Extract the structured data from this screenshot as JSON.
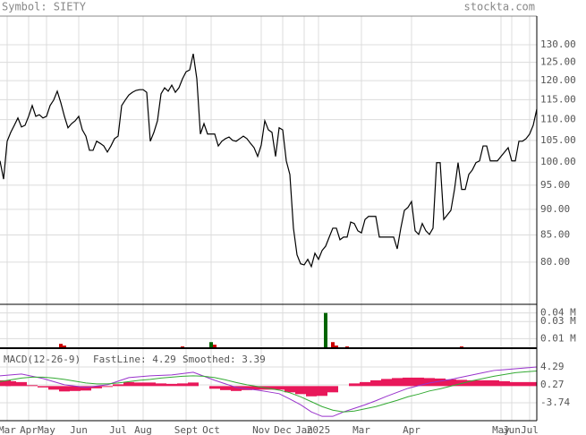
{
  "header": {
    "symbol": "Symbol: SIETY",
    "site": "stockta.com"
  },
  "chart_data": [
    {
      "type": "line",
      "categories": [
        null,
        null,
        "Mar",
        null,
        null,
        null,
        null,
        null,
        "Apr",
        null,
        null,
        null,
        null,
        "May",
        null,
        null,
        null,
        null,
        null,
        null,
        null,
        null,
        "Jun",
        null,
        null,
        null,
        null,
        null,
        null,
        null,
        null,
        null,
        null,
        "Jul",
        null,
        null,
        null,
        null,
        null,
        null,
        "Aug",
        null,
        null,
        null,
        null,
        null,
        null,
        null,
        null,
        null,
        null,
        null,
        "Sept",
        null,
        null,
        null,
        null,
        null,
        null,
        "Oct",
        null,
        null,
        null,
        null,
        null,
        null,
        null,
        null,
        null,
        null,
        null,
        null,
        null,
        "Nov",
        null,
        null,
        null,
        null,
        null,
        "Dec",
        null,
        null,
        null,
        null,
        null,
        "Jan",
        null,
        null,
        null,
        "2025",
        null,
        null,
        null,
        null,
        null,
        null,
        null,
        null,
        null,
        null,
        null,
        "Mar",
        null,
        null,
        null,
        null,
        null,
        null,
        null,
        null,
        null,
        null,
        null,
        null,
        null,
        "Apr",
        null,
        null,
        null,
        null,
        null,
        null,
        null,
        null,
        null,
        null,
        null,
        null,
        null,
        null,
        null,
        null,
        null,
        null,
        null,
        null,
        null,
        null,
        null,
        null,
        "May",
        null,
        null,
        "Jun",
        null,
        null,
        null,
        null,
        "Jul",
        null,
        null
      ],
      "series": [
        {
          "color": "#000000",
          "values": [
            100.3,
            96.3,
            104.8,
            106.9,
            108.6,
            110.4,
            108.2,
            108.6,
            110.8,
            113.5,
            110.8,
            111.2,
            110.4,
            110.8,
            113.5,
            114.9,
            117.2,
            114.2,
            110.8,
            108.0,
            109.0,
            109.7,
            110.8,
            107.5,
            106.0,
            102.7,
            102.7,
            104.8,
            104.3,
            103.7,
            102.3,
            103.7,
            105.4,
            106.0,
            113.5,
            114.9,
            116.2,
            116.9,
            117.4,
            117.6,
            117.6,
            116.9,
            104.8,
            106.9,
            109.7,
            116.5,
            118.1,
            117.2,
            118.8,
            116.9,
            118.1,
            120.5,
            122.4,
            122.9,
            127.4,
            120.5,
            106.5,
            109.0,
            106.5,
            106.5,
            106.5,
            103.7,
            104.8,
            105.4,
            105.8,
            105.0,
            104.8,
            105.4,
            106.0,
            105.4,
            104.3,
            103.3,
            101.3,
            103.9,
            109.7,
            107.5,
            106.9,
            101.3,
            108.0,
            107.5,
            100.3,
            97.3,
            86.3,
            81.3,
            79.7,
            79.5,
            80.5,
            79.2,
            81.6,
            80.5,
            82.1,
            82.9,
            84.6,
            86.3,
            86.3,
            84.1,
            84.6,
            84.6,
            87.5,
            87.2,
            85.8,
            85.4,
            88.0,
            88.6,
            88.6,
            88.6,
            84.6,
            84.6,
            84.6,
            84.6,
            84.6,
            82.4,
            86.3,
            89.8,
            90.4,
            91.6,
            85.8,
            85.1,
            87.2,
            85.8,
            85.1,
            86.3,
            99.9,
            99.9,
            88.0,
            88.9,
            89.8,
            94.1,
            99.9,
            94.1,
            94.1,
            97.3,
            98.3,
            99.9,
            100.3,
            103.7,
            103.7,
            100.3,
            100.3,
            100.3,
            101.3,
            102.3,
            103.3,
            100.3,
            100.3,
            104.8,
            104.8,
            105.4,
            106.5,
            108.6,
            112.6
          ]
        }
      ],
      "ylim": [
        72.8,
        138.6
      ],
      "yticks": [
        {
          "value": 130,
          "label": "130.00"
        },
        {
          "value": 125,
          "label": "125.00"
        },
        {
          "value": 120,
          "label": "120.00"
        },
        {
          "value": 115,
          "label": "115.00"
        },
        {
          "value": 110,
          "label": "110.00"
        },
        {
          "value": 105,
          "label": "105.00"
        },
        {
          "value": 100,
          "label": "100.00"
        },
        {
          "value": 95,
          "label": "95.00"
        },
        {
          "value": 90,
          "label": "90.00"
        },
        {
          "value": 85,
          "label": "85.00"
        },
        {
          "value": 80,
          "label": "80.00"
        }
      ],
      "log_scale": true,
      "grid": true
    },
    {
      "type": "bar",
      "series": [
        {
          "color": "#006400",
          "values": [
            null,
            null,
            null,
            null,
            null,
            null,
            null,
            null,
            null,
            null,
            null,
            null,
            null,
            null,
            null,
            null,
            null,
            null,
            null,
            null,
            null,
            null,
            null,
            null,
            null,
            null,
            null,
            null,
            null,
            null,
            null,
            null,
            null,
            null,
            null,
            null,
            null,
            null,
            null,
            null,
            null,
            null,
            null,
            null,
            null,
            null,
            null,
            null,
            null,
            null,
            null,
            null,
            null,
            null,
            null,
            null,
            null,
            null,
            null,
            0.006,
            null,
            null,
            null,
            null,
            null,
            null,
            null,
            null,
            null,
            null,
            null,
            null,
            null,
            null,
            null,
            null,
            null,
            null,
            null,
            null,
            null,
            null,
            null,
            null,
            null,
            null,
            null,
            null,
            null,
            null,
            null,
            0.04,
            null,
            null,
            null,
            null,
            null,
            null,
            null,
            null,
            null,
            null,
            null,
            null,
            null,
            null,
            null,
            null,
            null,
            null,
            null,
            null,
            null,
            null,
            null,
            null,
            null,
            null,
            null,
            null,
            null,
            null,
            null,
            null,
            null,
            null,
            null,
            null,
            null,
            null,
            null,
            null,
            null,
            null,
            null,
            null,
            null,
            null,
            null,
            null,
            null,
            null,
            null,
            null,
            null,
            null,
            null,
            null,
            null,
            null,
            null
          ]
        },
        {
          "color": "#cc0000",
          "values": [
            null,
            null,
            null,
            null,
            null,
            null,
            null,
            null,
            null,
            null,
            null,
            null,
            null,
            null,
            null,
            null,
            null,
            0.004,
            0.002,
            null,
            null,
            null,
            null,
            null,
            null,
            null,
            null,
            null,
            null,
            null,
            null,
            null,
            null,
            null,
            null,
            null,
            null,
            null,
            null,
            null,
            null,
            null,
            null,
            null,
            null,
            null,
            null,
            null,
            null,
            null,
            null,
            0.001,
            null,
            null,
            null,
            null,
            null,
            null,
            null,
            null,
            0.003,
            null,
            null,
            null,
            null,
            null,
            null,
            null,
            null,
            null,
            null,
            null,
            null,
            null,
            null,
            null,
            null,
            null,
            null,
            null,
            null,
            null,
            null,
            null,
            null,
            null,
            null,
            null,
            null,
            null,
            null,
            null,
            null,
            0.006,
            0.002,
            null,
            null,
            0.001,
            null,
            null,
            null,
            null,
            null,
            null,
            null,
            null,
            null,
            null,
            null,
            null,
            null,
            null,
            null,
            null,
            null,
            null,
            null,
            null,
            null,
            null,
            null,
            null,
            null,
            null,
            null,
            null,
            null,
            null,
            null,
            0.001,
            null,
            null,
            null,
            null,
            null,
            null,
            null,
            null,
            null,
            null,
            null,
            null,
            null,
            null,
            null,
            null,
            null,
            null,
            null,
            null,
            null
          ]
        }
      ],
      "ylim": [
        0,
        0.05
      ],
      "yticks": [
        {
          "value": 0.04,
          "label": "0.04 M"
        },
        {
          "value": 0.03,
          "label": "0.03 M"
        },
        {
          "value": 0.01,
          "label": "0.01 M"
        }
      ]
    },
    {
      "type": "macd",
      "title": "MACD(12-26-9)",
      "histogram": {
        "color": "#e8185a",
        "values": [
          1.3,
          1.1,
          0.9,
          0.2,
          -0.3,
          -0.8,
          -1.2,
          -1.1,
          -1.0,
          -0.5,
          -0.2,
          0.4,
          0.9,
          0.8,
          0.8,
          0.6,
          0.5,
          0.6,
          0.8,
          0.0,
          -0.6,
          -0.9,
          -1.1,
          -0.9,
          -0.8,
          -0.8,
          -0.8,
          -1.4,
          -1.8,
          -2.3,
          -2.2,
          -1.4,
          0.0,
          0.6,
          0.9,
          1.3,
          1.6,
          1.8,
          1.9,
          1.9,
          1.8,
          1.7,
          1.5,
          1.4,
          1.3,
          1.3,
          1.3,
          1.1,
          0.9,
          0.9,
          0.9
        ]
      },
      "series": [
        {
          "name": "FastLine: 4.29",
          "color": "#9933cc",
          "values": [
            2.3,
            2.5,
            2.7,
            2.2,
            1.7,
            1.0,
            0.3,
            0.0,
            -0.3,
            0.0,
            0.3,
            1.1,
            1.9,
            2.1,
            2.3,
            2.4,
            2.5,
            2.8,
            3.1,
            2.2,
            1.3,
            0.5,
            -0.3,
            -0.6,
            -0.9,
            -1.3,
            -1.7,
            -2.9,
            -4.2,
            -5.8,
            -6.8,
            -6.8,
            -5.8,
            -5.0,
            -4.2,
            -3.3,
            -2.3,
            -1.4,
            -0.5,
            0.1,
            0.7,
            1.1,
            1.5,
            2.0,
            2.5,
            3.0,
            3.5,
            3.7,
            3.9,
            4.1,
            4.29
          ]
        },
        {
          "name": "Smoothed: 3.39",
          "color": "#33aa33",
          "values": [
            1.0,
            1.4,
            1.8,
            2.0,
            2.0,
            1.8,
            1.5,
            1.1,
            0.7,
            0.5,
            0.5,
            0.7,
            1.0,
            1.3,
            1.5,
            1.8,
            2.0,
            2.2,
            2.3,
            2.2,
            1.9,
            1.4,
            0.8,
            0.3,
            -0.1,
            -0.5,
            -0.9,
            -1.5,
            -2.4,
            -3.5,
            -4.6,
            -5.4,
            -5.8,
            -5.6,
            -5.1,
            -4.6,
            -3.9,
            -3.2,
            -2.4,
            -1.8,
            -1.1,
            -0.6,
            0.0,
            0.6,
            1.2,
            1.7,
            2.2,
            2.6,
            3.0,
            3.2,
            3.39
          ]
        }
      ],
      "ylim": [
        -7.77,
        7.91
      ],
      "yticks": [
        4.29,
        0.27,
        -3.74
      ]
    }
  ]
}
